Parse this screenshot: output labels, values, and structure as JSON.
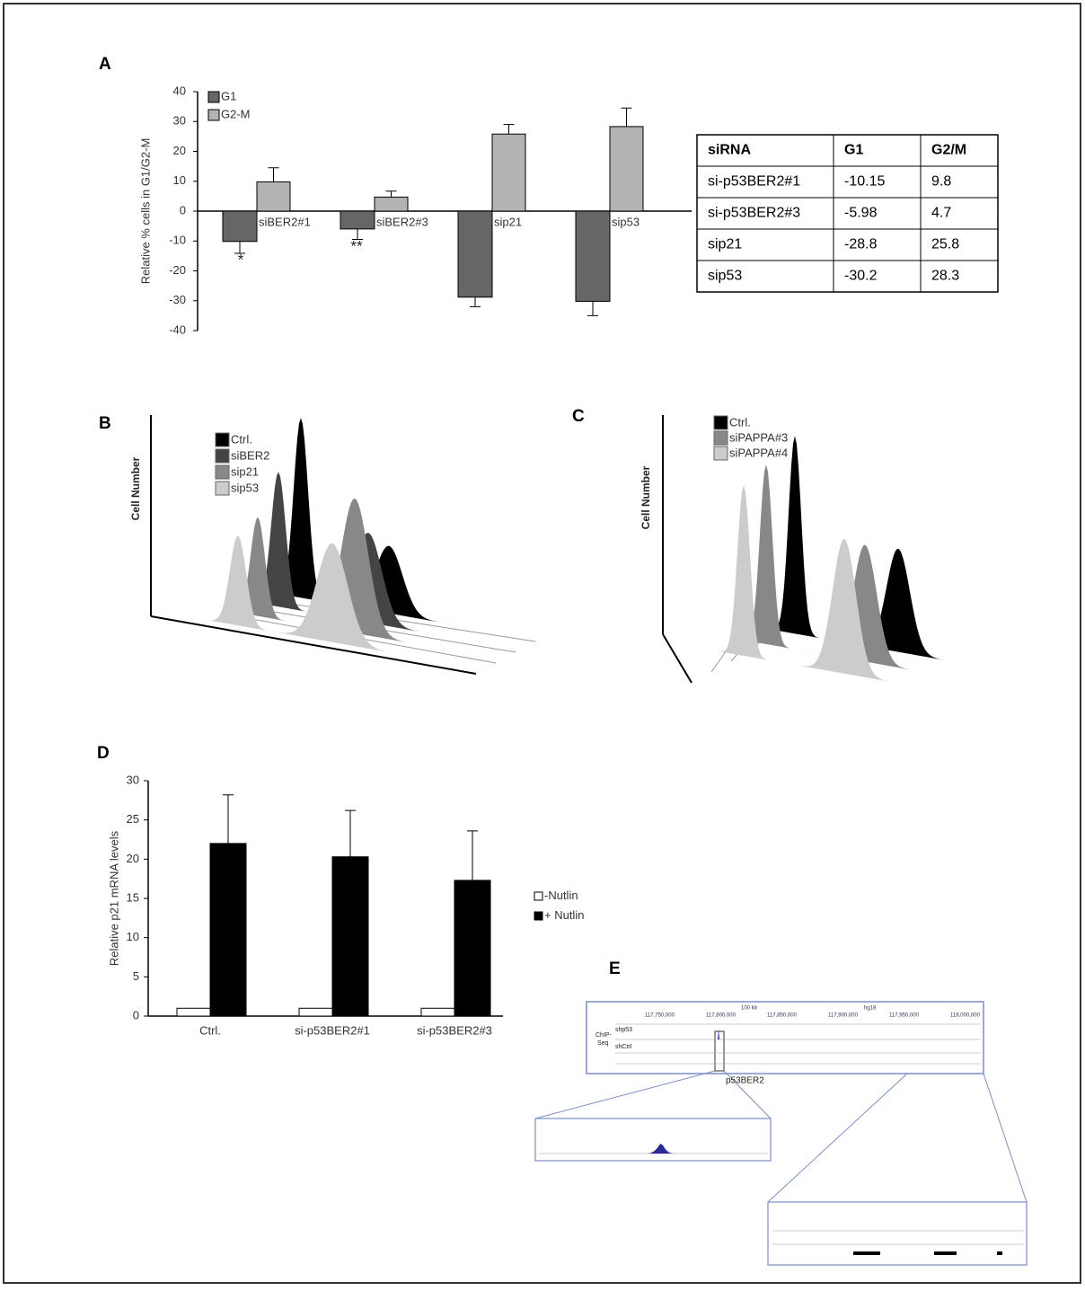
{
  "panels": [
    "A",
    "B",
    "C",
    "D",
    "E"
  ],
  "chart_data": [
    {
      "type": "bar",
      "ylabel": "Relative % cells in G1/G2-M",
      "categories": [
        "siBER2#1",
        "siBER2#3",
        "sip21",
        "sip53"
      ],
      "series": [
        {
          "name": "G1",
          "color": "#666666",
          "values": [
            -10.15,
            -5.98,
            -28.8,
            -30.2
          ],
          "errors": [
            4,
            3.5,
            3.2,
            4.8
          ]
        },
        {
          "name": "G2-M",
          "color": "#b3b3b3",
          "values": [
            9.8,
            4.7,
            25.8,
            28.3
          ],
          "errors": [
            4.7,
            2,
            3.2,
            6.2
          ]
        }
      ],
      "annotations": [
        "*",
        "**"
      ],
      "ylim": [
        -40,
        40
      ],
      "yticks": [
        -40,
        -30,
        -20,
        -10,
        0,
        10,
        20,
        30,
        40
      ]
    },
    {
      "type": "bar",
      "ylabel": "Relative p21 mRNA levels",
      "categories": [
        "Ctrl.",
        "si-p53BER2#1",
        "si-p53BER2#3"
      ],
      "series": [
        {
          "name": "-Nutlin",
          "color": "#ffffff",
          "values": [
            1,
            1,
            1
          ]
        },
        {
          "name": "+ Nutlin",
          "color": "#000000",
          "values": [
            22,
            20.3,
            17.3
          ],
          "errors": [
            6.2,
            5.9,
            6.3
          ]
        }
      ],
      "ylim": [
        0,
        30
      ],
      "yticks": [
        0,
        5,
        10,
        15,
        20,
        25,
        30
      ]
    }
  ],
  "table": {
    "header": [
      "siRNA",
      "G1",
      "G2/M"
    ],
    "rows": [
      [
        "si-p53BER2#1",
        "-10.15",
        "9.8"
      ],
      [
        "si-p53BER2#3",
        "-5.98",
        "4.7"
      ],
      [
        "sip21",
        "-28.8",
        "25.8"
      ],
      [
        "sip53",
        "-30.2",
        "28.3"
      ]
    ]
  },
  "histograms": [
    {
      "ylabel": "Cell Number",
      "legend": [
        {
          "name": "Ctrl.",
          "color": "#000000"
        },
        {
          "name": "siBER2",
          "color": "#444444"
        },
        {
          "name": "sip21",
          "color": "#888888"
        },
        {
          "name": "sip53",
          "color": "#cccccc"
        }
      ]
    },
    {
      "ylabel": "Cell Number",
      "legend": [
        {
          "name": "Ctrl.",
          "color": "#000000"
        },
        {
          "name": "siPAPPA#3",
          "color": "#888888"
        },
        {
          "name": "siPAPPA#4",
          "color": "#cccccc"
        }
      ]
    }
  ],
  "genome": {
    "track_label": [
      "ChIP-",
      "Seq"
    ],
    "tracks": [
      "shp53",
      "shCtrl"
    ],
    "locus": "p53BER2",
    "scale": "100 kb",
    "build": "hg18",
    "coords": [
      "117,750,000",
      "117,800,000",
      "117,850,000",
      "117,900,000",
      "117,950,000",
      "118,000,000"
    ]
  }
}
